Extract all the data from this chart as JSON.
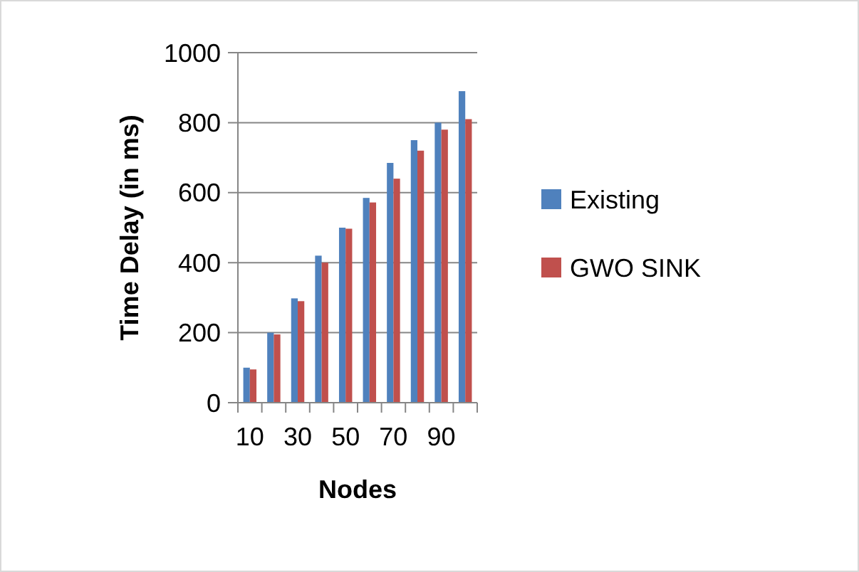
{
  "chart_data": {
    "type": "bar",
    "xlabel": "Nodes",
    "ylabel": "Time Delay (in ms)",
    "categories": [
      "10",
      null,
      "30",
      null,
      "50",
      null,
      "70",
      null,
      "90",
      null
    ],
    "series": [
      {
        "name": "Existing",
        "color": "#4f81bd",
        "values": [
          100,
          200,
          298,
          420,
          500,
          585,
          685,
          750,
          800,
          890
        ]
      },
      {
        "name": "GWO SINK",
        "color": "#c0504d",
        "values": [
          95,
          195,
          290,
          400,
          497,
          572,
          640,
          720,
          780,
          810
        ]
      }
    ],
    "ylim": [
      0,
      1000
    ],
    "yticks": [
      0,
      200,
      400,
      600,
      800,
      1000
    ],
    "grid": "y",
    "legend": "right"
  }
}
